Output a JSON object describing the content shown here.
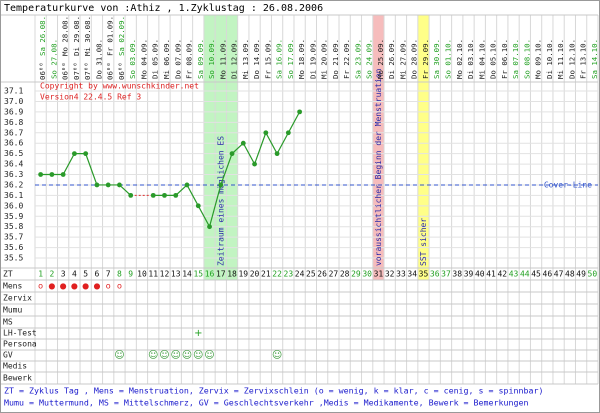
{
  "chart_data": {
    "type": "line",
    "title": "Temperaturkurve von :Athiz , 1.Zyklustag : 26.08.2006",
    "copyright": "Copyright by www.wunschkinder.net",
    "version": "Version4 22.4.5 Ref 3",
    "categories": [
      1,
      2,
      3,
      4,
      5,
      6,
      7,
      8,
      9,
      10,
      11,
      12,
      13,
      14,
      15,
      16,
      17,
      18,
      19,
      20,
      21,
      22,
      23,
      24,
      25,
      26,
      27,
      28,
      29,
      30,
      31,
      32,
      33,
      34,
      35,
      36,
      37,
      38,
      39,
      40,
      41,
      42,
      43,
      44,
      45,
      46,
      47,
      48,
      49,
      50
    ],
    "dates": [
      "Sa 26.08.",
      "So 27.08.",
      "Mo 28.08.",
      "Di 29.08.",
      "Mi 30.08.",
      "Do 31.08.",
      "Fr 01.09.",
      "Sa 02.09.",
      "So 03.09.",
      "Mo 04.09.",
      "Di 05.09.",
      "Mi 06.09.",
      "Do 07.09.",
      "Fr 08.09.",
      "Sa 09.09.",
      "So 10.09.",
      "Mo 11.09.",
      "Di 12.09.",
      "Mi 13.09.",
      "Do 14.09.",
      "Fr 15.09.",
      "Sa 16.09.",
      "So 17.09.",
      "Mo 18.09.",
      "Di 19.09.",
      "Mi 20.09.",
      "Do 21.09.",
      "Fr 22.09.",
      "Sa 23.09.",
      "So 24.09.",
      "Mo 25.09.",
      "Di 26.09.",
      "Mi 27.09.",
      "Do 28.09.",
      "Fr 29.09.",
      "Sa 30.09.",
      "So 01.10.",
      "Mo 02.10.",
      "Di 03.10.",
      "Mi 04.10.",
      "Do 05.10.",
      "Fr 06.10.",
      "Sa 07.10.",
      "So 08.10.",
      "Mo 09.10.",
      "Di 10.10.",
      "Mi 11.10.",
      "Do 12.10.",
      "Fr 13.10.",
      "Sa 14.10."
    ],
    "times": [
      "06⁰⁰",
      null,
      "06⁰⁰",
      "07⁰⁰",
      "07⁰⁰",
      null,
      "06⁰⁰",
      "06⁰⁰",
      null,
      null,
      null,
      null,
      null,
      null,
      null,
      null,
      null,
      null,
      null,
      null,
      null,
      null,
      null,
      null,
      null,
      null,
      null,
      null,
      null,
      null,
      null,
      null,
      null,
      null,
      null,
      null,
      null,
      null,
      null,
      null,
      null,
      null,
      null,
      null,
      null,
      null,
      null,
      null,
      null,
      null
    ],
    "values": [
      36.3,
      36.3,
      36.3,
      36.5,
      36.5,
      36.2,
      36.2,
      36.2,
      36.1,
      null,
      36.1,
      36.1,
      36.1,
      36.2,
      36.0,
      35.8,
      36.2,
      36.5,
      36.6,
      36.4,
      36.7,
      36.5,
      36.7,
      36.9,
      null,
      null,
      null,
      null,
      null,
      null,
      null,
      null,
      null,
      null,
      null,
      null,
      null,
      null,
      null,
      null,
      null,
      null,
      null,
      null,
      null,
      null,
      null,
      null,
      null,
      null
    ],
    "color": "#2a9a2a",
    "gap_color": "#e03030",
    "weekend_color": "#22a022",
    "ylim": [
      35.5,
      37.1
    ],
    "yticks": [
      37.1,
      {
        "value": 37,
        "label": "37.0"
      },
      36.9,
      36.8,
      36.7,
      36.6,
      36.5,
      36.4,
      36.3,
      36.2,
      36.1,
      {
        "value": 36,
        "label": "36.0"
      },
      35.9,
      35.8,
      35.7,
      35.6,
      35.5
    ],
    "grid": true,
    "cover_line": {
      "label": "Cover-Line",
      "value": 36.2,
      "color": "#3355cc"
    },
    "bands": [
      {
        "from": 16,
        "to": 18,
        "label": "Zeitraum eines möglichen ES",
        "color": "#c2f4c2"
      },
      {
        "from": 31,
        "to": 31,
        "label": "voraussichtlicher Beginn der Menstruation",
        "color": "#f6bcbc"
      },
      {
        "from": 35,
        "to": 35,
        "label": "SST sicher",
        "color": "#ffff88"
      }
    ],
    "row_labels": [
      "ZT",
      "Mens",
      "Zervix",
      "Mumu",
      "MS",
      "LH-Test",
      "Persona",
      "GV",
      "Medis",
      "Bewerk"
    ],
    "mens": [
      {
        "day": 1,
        "text": "o"
      },
      {
        "day": 2,
        "text": "●"
      },
      {
        "day": 3,
        "text": "●"
      },
      {
        "day": 4,
        "text": "●"
      },
      {
        "day": 5,
        "text": "●"
      },
      {
        "day": 6,
        "text": "●"
      },
      {
        "day": 7,
        "text": "o"
      },
      {
        "day": 8,
        "text": "o"
      }
    ],
    "lh_test": [
      {
        "day": 15,
        "text": "+"
      }
    ],
    "gv": [
      {
        "day": 8,
        "text": "☺"
      },
      {
        "day": 11,
        "text": "☺"
      },
      {
        "day": 12,
        "text": "☺"
      },
      {
        "day": 13,
        "text": "☺"
      },
      {
        "day": 14,
        "text": "☺"
      },
      {
        "day": 15,
        "text": "☺"
      },
      {
        "day": 16,
        "text": "☺"
      },
      {
        "day": 22,
        "text": "☺"
      }
    ],
    "footer": [
      "ZT = Zyklus Tag , Mens = Menstruation, Zervix = Zervixschlein (o = wenig, k = klar, c = cenig, s = spinnbar)",
      "Mumu = Muttermund, MS = Mittelschmerz, GV = Geschlechtsverkehr ,Medis = Medikamente, Bewerk = Bemerkungen"
    ]
  }
}
